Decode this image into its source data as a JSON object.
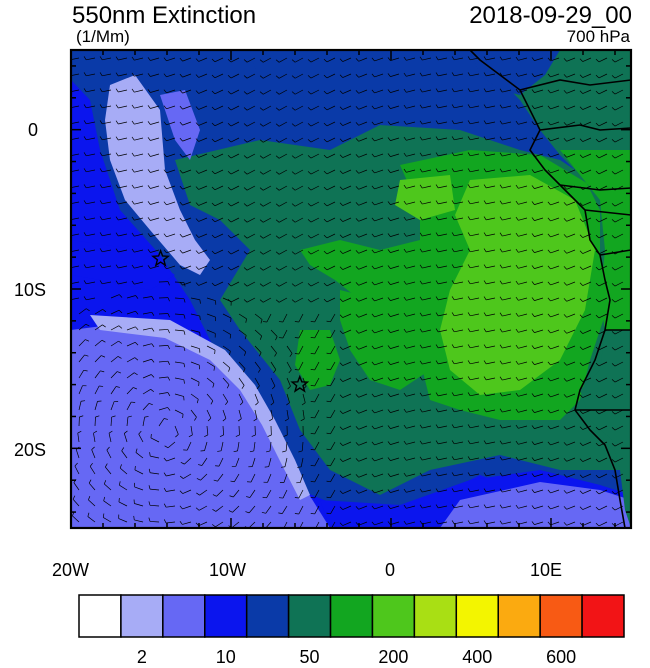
{
  "header": {
    "title": "550nm Extinction",
    "units": "(1/Mm)",
    "date": "2018-09-29_00",
    "level": "700 hPa"
  },
  "axes": {
    "x_ticks": [
      "20W",
      "10W",
      "0",
      "10E"
    ],
    "y_ticks": [
      "0",
      "10S",
      "20S"
    ],
    "lon_range": [
      -20,
      15
    ],
    "lat_range": [
      -25,
      5
    ]
  },
  "colorbar": {
    "colors": [
      "#ffffff",
      "#a7acf6",
      "#6668f4",
      "#0b15ee",
      "#0a3aa8",
      "#0f7355",
      "#12a620",
      "#4ec71c",
      "#a9df14",
      "#f3f500",
      "#fbaa10",
      "#f85a14",
      "#f21416"
    ],
    "labels": [
      "2",
      "10",
      "50",
      "200",
      "400",
      "600"
    ]
  },
  "map": {
    "markers": [
      {
        "name": "star-marker-1",
        "lon": -14.4,
        "lat": -8.1
      },
      {
        "name": "star-marker-2",
        "lon": -5.7,
        "lat": -16.0
      }
    ]
  }
}
